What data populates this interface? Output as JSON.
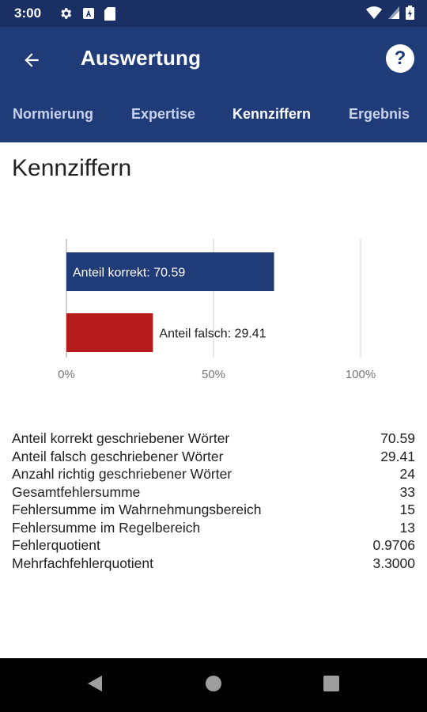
{
  "status_bar": {
    "time": "3:00"
  },
  "app_bar": {
    "title": "Auswertung"
  },
  "tabs": [
    {
      "label": "Normierung",
      "active": false
    },
    {
      "label": "Expertise",
      "active": false
    },
    {
      "label": "Kennziffern",
      "active": true
    },
    {
      "label": "Ergebnis",
      "active": false
    }
  ],
  "section_title": "Kennziffern",
  "chart_data": {
    "type": "bar",
    "orientation": "horizontal",
    "categories": [
      "Anteil korrekt",
      "Anteil falsch"
    ],
    "values": [
      70.59,
      29.41
    ],
    "bar_labels": [
      "Anteil korrekt: 70.59",
      "Anteil falsch: 29.41"
    ],
    "colors": [
      "#1f3b78",
      "#b71c1c"
    ],
    "x_ticks": [
      "0%",
      "50%",
      "100%"
    ],
    "xlim": [
      0,
      100
    ],
    "grid": true
  },
  "stats": [
    {
      "label": "Anteil korrekt geschriebener Wörter",
      "value": "70.59"
    },
    {
      "label": "Anteil falsch geschriebener Wörter",
      "value": "29.41"
    },
    {
      "label": "Anzahl richtig geschriebener Wörter",
      "value": "24"
    },
    {
      "label": "Gesamtfehlersumme",
      "value": "33"
    },
    {
      "label": "Fehlersumme im Wahrnehmungsbereich",
      "value": "15"
    },
    {
      "label": "Fehlersumme im Regelbereich",
      "value": "13"
    },
    {
      "label": "Fehlerquotient",
      "value": "0.9706"
    },
    {
      "label": "Mehrfachfehlerquotient",
      "value": "3.3000"
    }
  ]
}
